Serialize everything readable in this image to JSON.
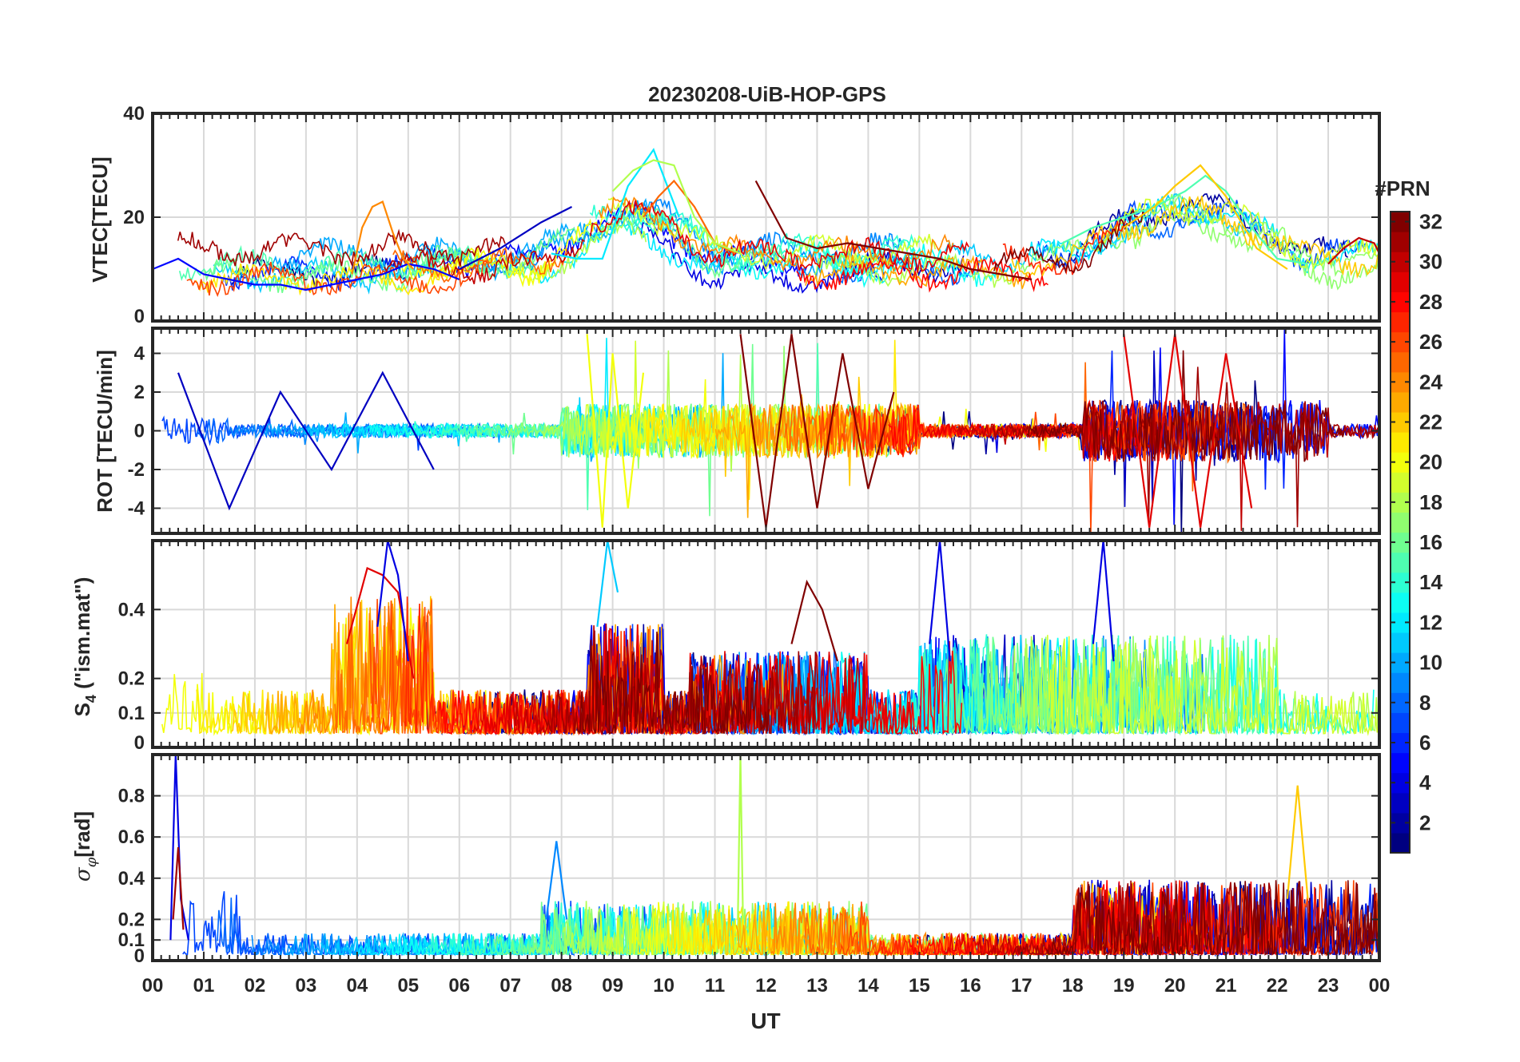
{
  "figure": {
    "title": "20230208-UiB-HOP-GPS",
    "xlabel": "UT",
    "colorbar": {
      "title": "#PRN",
      "range": [
        1,
        32
      ],
      "ticks": [
        "2",
        "4",
        "6",
        "8",
        "10",
        "12",
        "14",
        "16",
        "18",
        "20",
        "22",
        "24",
        "26",
        "28",
        "30",
        "32"
      ],
      "colormap": "jet",
      "levels": 32
    }
  },
  "chart_data": [
    {
      "type": "line",
      "panel": "vtec",
      "ylabel": "VTEC[TECU]",
      "ylim": [
        0,
        40
      ],
      "yticks": [
        "0",
        "20",
        "40"
      ],
      "xlim": [
        0,
        24
      ],
      "xticks": [
        "00",
        "01",
        "02",
        "03",
        "04",
        "05",
        "06",
        "07",
        "08",
        "09",
        "10",
        "11",
        "12",
        "13",
        "14",
        "15",
        "16",
        "17",
        "18",
        "19",
        "20",
        "21",
        "22",
        "23",
        "00"
      ],
      "grid": true,
      "series": [
        {
          "name": "PRN 5",
          "prn": 5,
          "x": [
            0.0,
            0.5,
            1.0,
            1.5,
            2.0,
            2.5,
            3.0,
            3.5,
            4.0,
            4.5,
            5.0,
            5.5,
            6.0
          ],
          "values": [
            10,
            12,
            9,
            8,
            7,
            7,
            6,
            7,
            8,
            9,
            11,
            10,
            8
          ]
        },
        {
          "name": "PRN 24",
          "prn": 24,
          "x": [
            3.9,
            4.1,
            4.3,
            4.5,
            4.7,
            4.9,
            5.1
          ],
          "values": [
            9,
            18,
            22,
            23,
            17,
            12,
            10
          ]
        },
        {
          "name": "PRN 12",
          "prn": 12,
          "x": [
            7.8,
            8.3,
            8.8,
            9.3,
            9.8,
            10.3
          ],
          "values": [
            13,
            12,
            12,
            26,
            33,
            20
          ]
        },
        {
          "name": "PRN 25",
          "prn": 25,
          "x": [
            9.6,
            9.9,
            10.2,
            10.6,
            11.0,
            11.4
          ],
          "values": [
            20,
            24,
            27,
            22,
            15,
            13
          ]
        },
        {
          "name": "PRN 18",
          "prn": 18,
          "x": [
            9.0,
            9.4,
            9.8,
            10.2,
            10.6,
            11.0,
            11.5
          ],
          "values": [
            25,
            29,
            31,
            30,
            20,
            15,
            13
          ]
        },
        {
          "name": "PRN 32",
          "prn": 32,
          "x": [
            11.8,
            12.4,
            13.0,
            13.6,
            14.2,
            14.8,
            15.4,
            16.0,
            16.6,
            17.2
          ],
          "values": [
            27,
            16,
            14,
            15,
            14,
            13,
            12,
            10,
            9,
            8
          ]
        },
        {
          "name": "PRN 3",
          "prn": 3,
          "x": [
            6.0,
            6.8,
            7.6,
            8.2
          ],
          "values": [
            10,
            14,
            19,
            22
          ]
        },
        {
          "name": "PRN 15",
          "prn": 15,
          "x": [
            17.8,
            18.4,
            19.0,
            19.6,
            20.2,
            20.6,
            21.0,
            21.5,
            22.0,
            22.6
          ],
          "values": [
            15,
            18,
            20,
            22,
            25,
            28,
            25,
            18,
            12,
            11
          ]
        },
        {
          "name": "PRN 22",
          "prn": 22,
          "x": [
            19.0,
            19.6,
            20.0,
            20.5,
            21.0,
            21.6,
            22.2
          ],
          "values": [
            18,
            22,
            26,
            30,
            24,
            14,
            10
          ]
        },
        {
          "name": "PRN 30",
          "prn": 30,
          "x": [
            23.0,
            23.3,
            23.6,
            23.9,
            24.0
          ],
          "values": [
            11,
            14,
            16,
            15,
            13
          ]
        }
      ]
    },
    {
      "type": "line",
      "panel": "rot",
      "ylabel": "ROT [TECU/min]",
      "ylim": [
        -5.3,
        5.3
      ],
      "yticks": [
        "-4",
        "-2",
        "0",
        "2",
        "4"
      ],
      "xlim": [
        0,
        24
      ],
      "grid": true,
      "series": [
        {
          "name": "PRN 3",
          "prn": 3,
          "x": [
            0.5,
            1.5,
            2.5,
            3.5,
            4.5,
            5.5
          ],
          "values": [
            3,
            -4,
            2,
            -2,
            3,
            -2
          ]
        },
        {
          "name": "PRN 20",
          "prn": 20,
          "x": [
            8.5,
            8.8,
            9.0,
            9.3,
            9.6
          ],
          "values": [
            5,
            -5,
            4,
            -4,
            3
          ]
        },
        {
          "name": "PRN 32",
          "prn": 32,
          "x": [
            11.5,
            12.0,
            12.5,
            13.0,
            13.5,
            14.0,
            14.5
          ],
          "values": [
            5,
            -5,
            5,
            -4,
            4,
            -3,
            2
          ]
        },
        {
          "name": "PRN 29",
          "prn": 29,
          "x": [
            19.0,
            19.5,
            20.0,
            20.5,
            21.0,
            21.5
          ],
          "values": [
            5,
            -5,
            5,
            -5,
            4,
            -4
          ]
        }
      ]
    },
    {
      "type": "line",
      "panel": "s4",
      "ylabel": "S4 (\"ism.mat\")",
      "ylabel_main": "S",
      "ylabel_sub": "4",
      "ylabel_rest": " (\"ism.mat\")",
      "ylim": [
        0,
        0.6
      ],
      "yticks": [
        "0",
        "0.1",
        "0.2",
        "0.4"
      ],
      "xlim": [
        0,
        24
      ],
      "grid": true,
      "series": [
        {
          "name": "PRN 29",
          "prn": 29,
          "x": [
            3.8,
            4.2,
            4.5,
            4.8,
            5.1
          ],
          "values": [
            0.3,
            0.52,
            0.5,
            0.45,
            0.2
          ]
        },
        {
          "name": "PRN 4",
          "prn": 4,
          "x": [
            4.4,
            4.6,
            4.8,
            5.0
          ],
          "values": [
            0.35,
            0.6,
            0.5,
            0.25
          ]
        },
        {
          "name": "PRN 11",
          "prn": 11,
          "x": [
            8.7,
            8.9,
            9.1
          ],
          "values": [
            0.35,
            0.6,
            0.45
          ]
        },
        {
          "name": "PRN 32",
          "prn": 32,
          "x": [
            12.5,
            12.8,
            13.1,
            13.4
          ],
          "values": [
            0.3,
            0.48,
            0.4,
            0.25
          ]
        },
        {
          "name": "PRN 4",
          "prn": 4,
          "x": [
            15.2,
            15.4,
            15.6
          ],
          "values": [
            0.3,
            0.6,
            0.25
          ]
        },
        {
          "name": "PRN 4",
          "prn": 4,
          "x": [
            18.4,
            18.6,
            18.8
          ],
          "values": [
            0.3,
            0.6,
            0.25
          ]
        }
      ]
    },
    {
      "type": "line",
      "panel": "sigma_phi",
      "ylabel": "σφ[rad]",
      "ylabel_main": "σ",
      "ylabel_sub": "φ",
      "ylabel_rest": "[rad]",
      "ylim": [
        0,
        1
      ],
      "yticks": [
        "0",
        "0.1",
        "0.2",
        "0.4",
        "0.6",
        "0.8"
      ],
      "xlim": [
        0,
        24
      ],
      "grid": true,
      "series": [
        {
          "name": "PRN 4",
          "prn": 4,
          "x": [
            0.35,
            0.45,
            0.55,
            0.7
          ],
          "values": [
            0.1,
            1.0,
            0.3,
            0.1
          ]
        },
        {
          "name": "PRN 31",
          "prn": 31,
          "x": [
            0.4,
            0.5,
            0.6
          ],
          "values": [
            0.2,
            0.55,
            0.15
          ]
        },
        {
          "name": "PRN 9",
          "prn": 9,
          "x": [
            7.7,
            7.9,
            8.1
          ],
          "values": [
            0.2,
            0.58,
            0.2
          ]
        },
        {
          "name": "PRN 18",
          "prn": 18,
          "x": [
            11.45,
            11.5,
            11.55
          ],
          "values": [
            0.2,
            1.0,
            0.2
          ]
        },
        {
          "name": "PRN 22",
          "prn": 22,
          "x": [
            22.2,
            22.4,
            22.6
          ],
          "values": [
            0.3,
            0.85,
            0.3
          ]
        }
      ]
    }
  ]
}
